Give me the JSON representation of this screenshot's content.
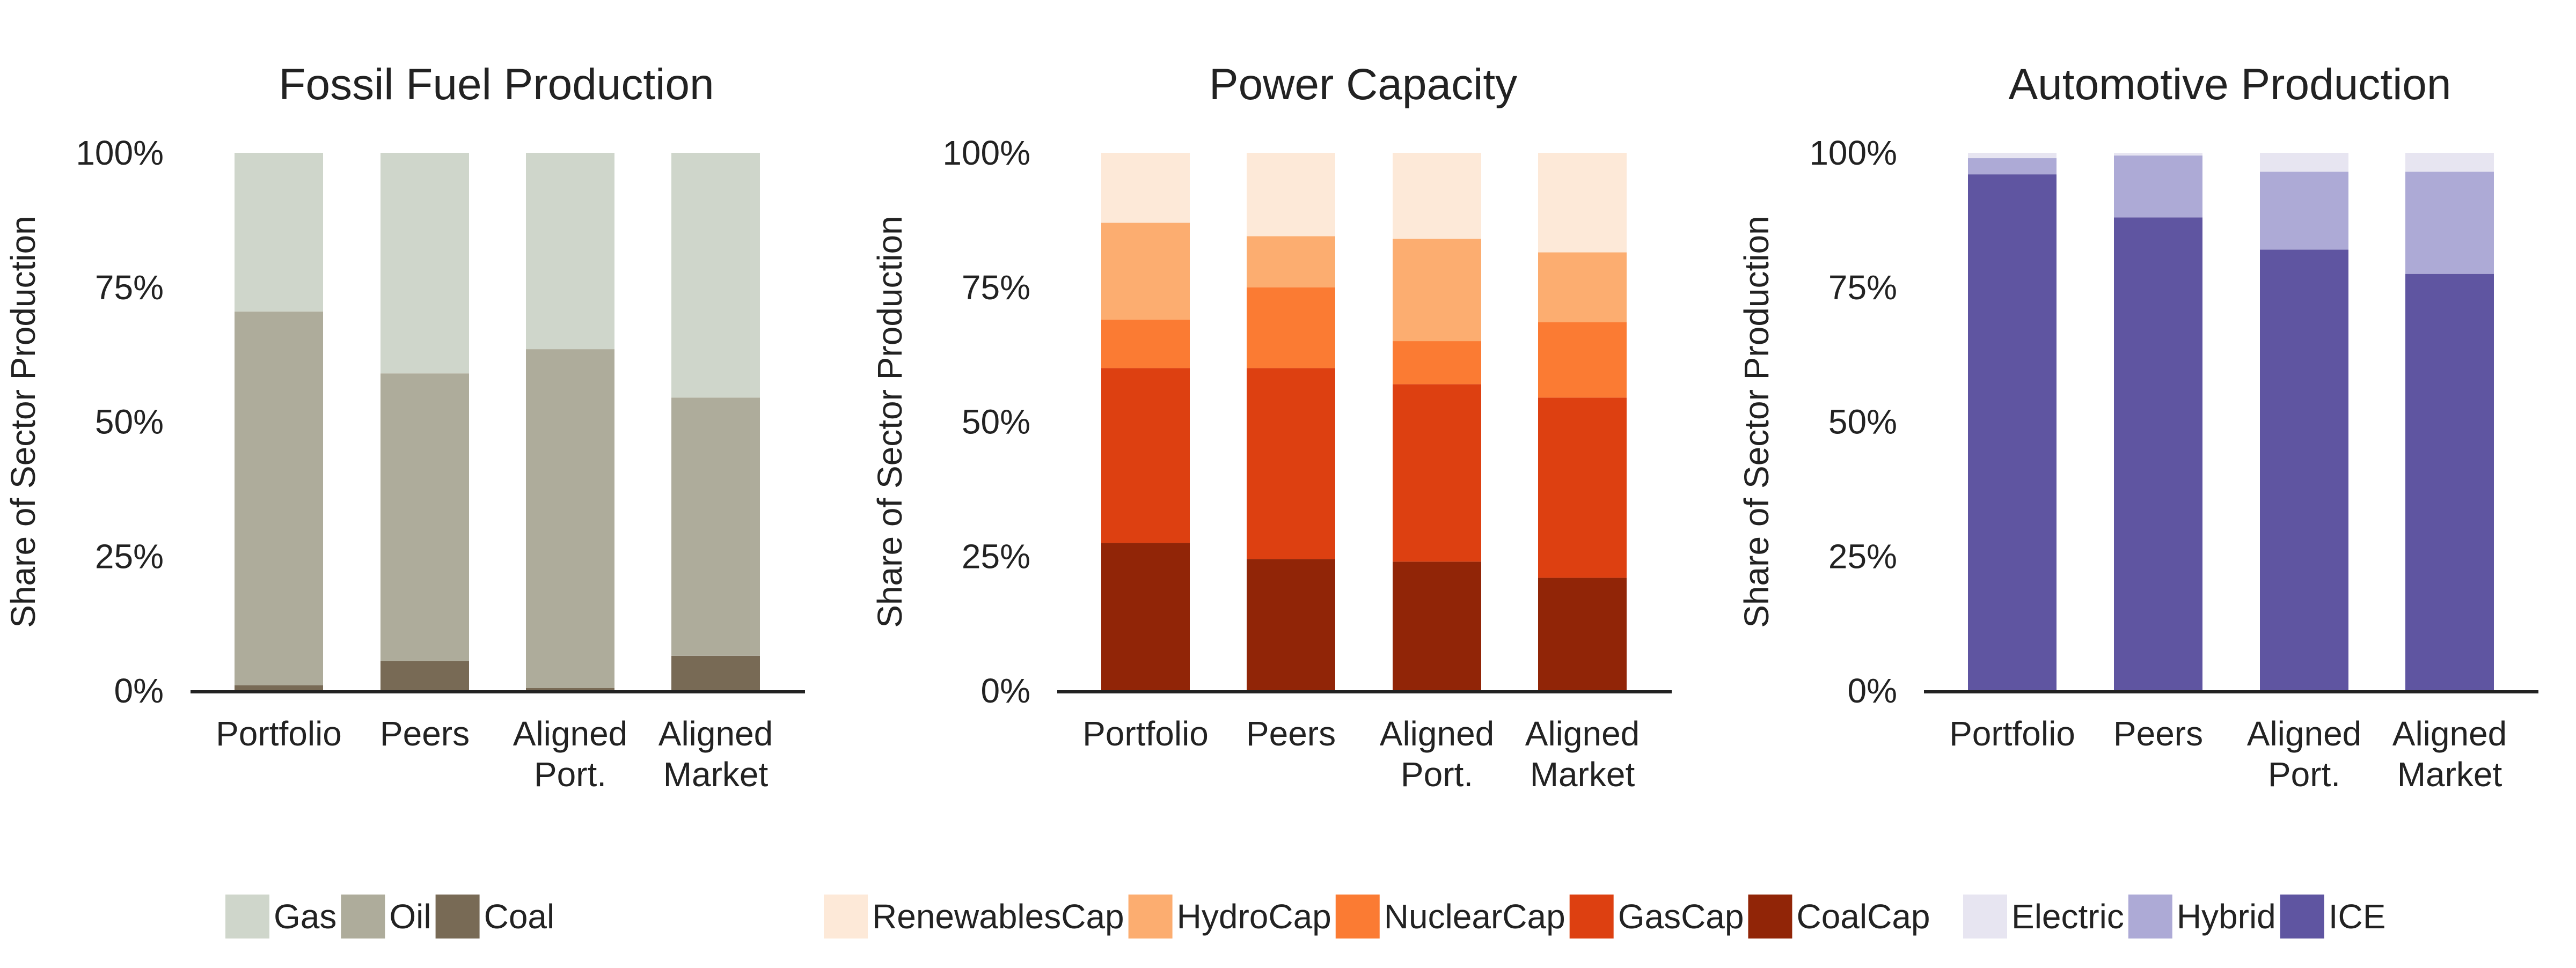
{
  "chart_data": [
    {
      "type": "bar",
      "stacked": true,
      "title": "Fossil Fuel Production",
      "ylabel": "Share of Sector Production",
      "categories": [
        "Portfolio",
        "Peers",
        "Aligned Port.",
        "Aligned Market"
      ],
      "category_lines": [
        [
          "Portfolio"
        ],
        [
          "Peers"
        ],
        [
          "Aligned",
          "Port."
        ],
        [
          "Aligned",
          "Market"
        ]
      ],
      "ylim": [
        0,
        100
      ],
      "yticks": [
        "0%",
        "25%",
        "50%",
        "75%",
        "100%"
      ],
      "series": [
        {
          "name": "Coal",
          "color": "#786a55",
          "values": [
            1,
            5.5,
            0.5,
            6.5
          ]
        },
        {
          "name": "Oil",
          "color": "#aeac9b",
          "values": [
            69.5,
            53.5,
            63,
            48
          ]
        },
        {
          "name": "Gas",
          "color": "#cfd6cb",
          "values": [
            29.5,
            41,
            36.5,
            45.5
          ]
        }
      ],
      "legend_order": [
        "Gas",
        "Oil",
        "Coal"
      ],
      "legend_position": "bottom"
    },
    {
      "type": "bar",
      "stacked": true,
      "title": "Power Capacity",
      "ylabel": "Share of Sector Production",
      "categories": [
        "Portfolio",
        "Peers",
        "Aligned Port.",
        "Aligned Market"
      ],
      "category_lines": [
        [
          "Portfolio"
        ],
        [
          "Peers"
        ],
        [
          "Aligned",
          "Port."
        ],
        [
          "Aligned",
          "Market"
        ]
      ],
      "ylim": [
        0,
        100
      ],
      "yticks": [
        "0%",
        "25%",
        "50%",
        "75%",
        "100%"
      ],
      "series": [
        {
          "name": "CoalCap",
          "color": "#912507",
          "values": [
            27.5,
            24.5,
            24,
            21
          ]
        },
        {
          "name": "GasCap",
          "color": "#dd4011",
          "values": [
            32.5,
            35.5,
            33,
            33.5
          ]
        },
        {
          "name": "NuclearCap",
          "color": "#fb7b33",
          "values": [
            9,
            15,
            8,
            14
          ]
        },
        {
          "name": "HydroCap",
          "color": "#fcad70",
          "values": [
            18,
            9.5,
            19,
            13
          ]
        },
        {
          "name": "RenewablesCap",
          "color": "#fde9d8",
          "values": [
            13,
            15.5,
            16,
            18.5
          ]
        }
      ],
      "legend_order": [
        "RenewablesCap",
        "HydroCap",
        "NuclearCap",
        "GasCap",
        "CoalCap"
      ],
      "legend_position": "bottom"
    },
    {
      "type": "bar",
      "stacked": true,
      "title": "Automotive Production",
      "ylabel": "Share of Sector Production",
      "categories": [
        "Portfolio",
        "Peers",
        "Aligned Port.",
        "Aligned Market"
      ],
      "category_lines": [
        [
          "Portfolio"
        ],
        [
          "Peers"
        ],
        [
          "Aligned",
          "Port."
        ],
        [
          "Aligned",
          "Market"
        ]
      ],
      "ylim": [
        0,
        100
      ],
      "yticks": [
        "0%",
        "25%",
        "50%",
        "75%",
        "100%"
      ],
      "series": [
        {
          "name": "ICE",
          "color": "#5f55a1",
          "values": [
            96,
            88,
            82,
            77.5
          ]
        },
        {
          "name": "Hybrid",
          "color": "#adaad6",
          "values": [
            3,
            11.5,
            14.5,
            19
          ]
        },
        {
          "name": "Electric",
          "color": "#e7e5f1",
          "values": [
            1,
            0.5,
            3.5,
            3.5
          ]
        }
      ],
      "legend_order": [
        "Electric",
        "Hybrid",
        "ICE"
      ],
      "legend_position": "bottom"
    }
  ]
}
